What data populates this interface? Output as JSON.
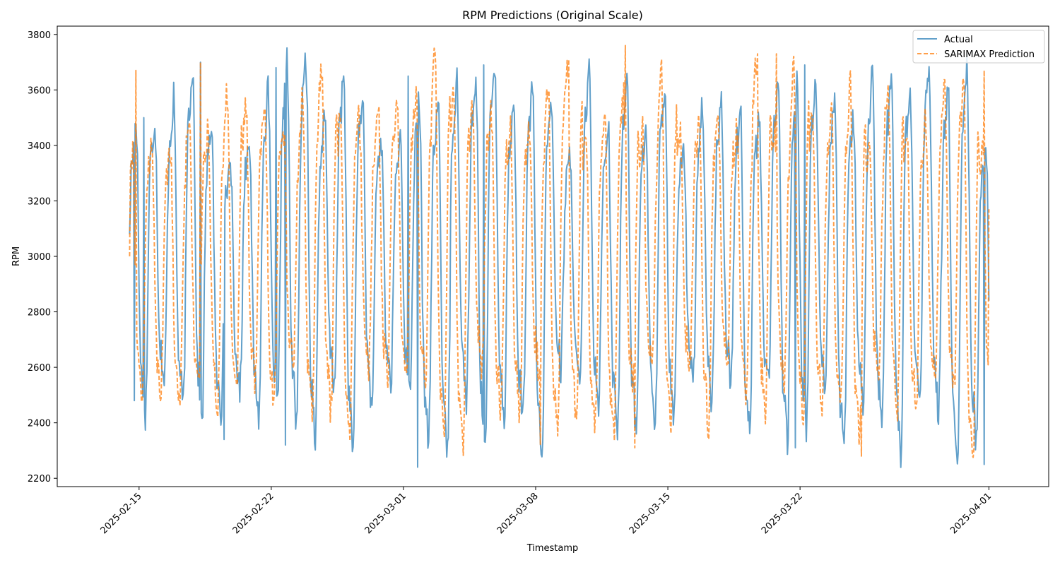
{
  "chart_data": {
    "type": "line",
    "title": "RPM Predictions (Original Scale)",
    "xlabel": "Timestamp",
    "ylabel": "RPM",
    "x_range": [
      "2025-02-10T16:00",
      "2025-04-04T04:00"
    ],
    "ylim": [
      2170,
      3830
    ],
    "x_ticks": [
      "2025-02-15",
      "2025-02-22",
      "2025-03-01",
      "2025-03-08",
      "2025-03-15",
      "2025-03-22",
      "2025-04-01"
    ],
    "y_ticks": [
      2200,
      2400,
      2600,
      2800,
      3000,
      3200,
      3400,
      3600,
      3800
    ],
    "grid": false,
    "legend_position": "top-right",
    "cycle_period_hours": 24,
    "colors": {
      "actual": "#1f77b4",
      "prediction": "#ff7f0e"
    },
    "series": [
      {
        "name": "Actual",
        "style": "solid",
        "start": "2025-02-14T12:00",
        "end": "2025-04-01T00:00",
        "notable_points": [
          {
            "t": "2025-02-14T12:00",
            "y": 3080
          },
          {
            "t": "2025-02-14T18:00",
            "y": 2480
          },
          {
            "t": "2025-02-15T06:00",
            "y": 3500
          },
          {
            "t": "2025-02-18T06:00",
            "y": 3700
          },
          {
            "t": "2025-02-19T12:00",
            "y": 2340
          },
          {
            "t": "2025-02-22T06:00",
            "y": 3680
          },
          {
            "t": "2025-02-22T18:00",
            "y": 2320
          },
          {
            "t": "2025-03-01T06:00",
            "y": 3650
          },
          {
            "t": "2025-03-01T18:00",
            "y": 2240
          },
          {
            "t": "2025-03-05T06:00",
            "y": 3690
          },
          {
            "t": "2025-03-21T18:00",
            "y": 2310
          },
          {
            "t": "2025-03-22T06:00",
            "y": 3690
          },
          {
            "t": "2025-03-31T18:00",
            "y": 2250
          },
          {
            "t": "2025-04-01T00:00",
            "y": 2840
          }
        ]
      },
      {
        "name": "SARIMAX Prediction",
        "style": "dashed",
        "start": "2025-02-14T12:00",
        "end": "2025-04-01T00:00",
        "notable_points": [
          {
            "t": "2025-02-14T12:00",
            "y": 3000
          },
          {
            "t": "2025-02-14T20:00",
            "y": 3670
          },
          {
            "t": "2025-02-18T06:00",
            "y": 3700
          },
          {
            "t": "2025-03-08T06:00",
            "y": 2320
          },
          {
            "t": "2025-03-09T18:00",
            "y": 3710
          },
          {
            "t": "2025-03-12T18:00",
            "y": 3760
          },
          {
            "t": "2025-03-13T06:00",
            "y": 2310
          },
          {
            "t": "2025-03-19T18:00",
            "y": 3730
          },
          {
            "t": "2025-03-20T18:00",
            "y": 3730
          },
          {
            "t": "2025-03-25T06:00",
            "y": 2280
          },
          {
            "t": "2025-03-31T18:00",
            "y": 3670
          },
          {
            "t": "2025-04-01T00:00",
            "y": 3170
          }
        ]
      }
    ]
  }
}
